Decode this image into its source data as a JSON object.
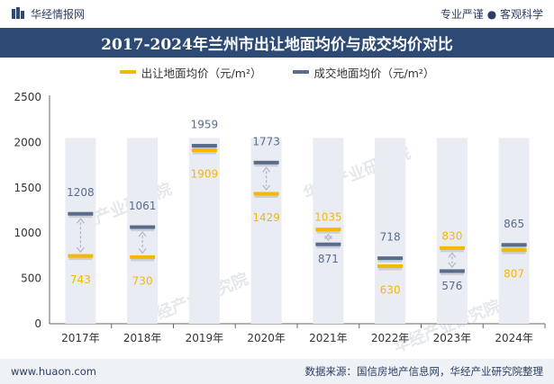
{
  "header": {
    "brand": "华经情报网",
    "slogan": "专业严谨 ● 客观科学"
  },
  "chart_data": {
    "type": "bar",
    "title": "2017-2024年兰州市出让地面均价与成交均价对比",
    "categories": [
      "2017年",
      "2018年",
      "2019年",
      "2020年",
      "2021年",
      "2022年",
      "2023年",
      "2024年"
    ],
    "series": [
      {
        "name": "出让地面均价（元/m²）",
        "color": "#f5b800",
        "values": [
          743,
          730,
          1909,
          1429,
          1035,
          630,
          830,
          807
        ]
      },
      {
        "name": "成交地面均价（元/m²）",
        "color": "#5b6b8c",
        "values": [
          1208,
          1061,
          1959,
          1773,
          871,
          718,
          576,
          865
        ]
      }
    ],
    "background_bar": 2050,
    "ylim": [
      0,
      2500
    ],
    "yticks": [
      "0",
      "500",
      "1000",
      "1500",
      "2000",
      "2500"
    ],
    "xlabel": "",
    "ylabel": ""
  },
  "watermark": "华经产业研究院",
  "footer": {
    "site": "www.huaon.com",
    "source": "数据来源：国信房地产信息网，华经产业研究院整理"
  }
}
